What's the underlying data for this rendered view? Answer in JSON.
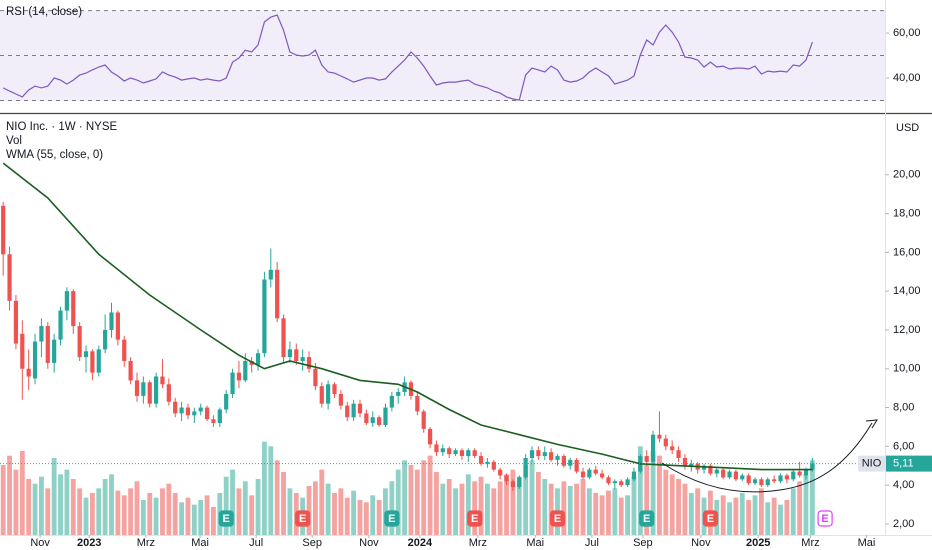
{
  "chart_data": {
    "type": "candlestick",
    "title": "NIO Inc. · 1W · NYSE",
    "currency": "USD",
    "x": [
      0,
      1,
      2,
      3,
      4,
      5,
      6,
      7,
      8,
      9,
      10,
      11,
      12,
      13,
      14,
      15,
      16,
      17,
      18,
      19,
      20,
      21,
      22,
      23,
      24,
      25,
      26,
      27,
      28,
      29,
      30,
      31,
      32,
      33,
      34,
      35,
      36,
      37,
      38,
      39,
      40,
      41,
      42,
      43,
      44,
      45,
      46,
      47,
      48,
      49,
      50,
      51,
      52,
      53,
      54,
      55,
      56,
      57,
      58,
      59,
      60,
      61,
      62,
      63,
      64,
      65,
      66,
      67,
      68,
      69,
      70,
      71,
      72,
      73,
      74,
      75,
      76,
      77,
      78,
      79,
      80,
      81,
      82,
      83,
      84,
      85,
      86,
      87,
      88,
      89,
      90,
      91,
      92,
      93,
      94,
      95,
      96,
      97,
      98,
      99,
      100,
      101,
      102,
      103,
      104,
      105,
      106,
      107,
      108,
      109,
      110,
      111,
      112,
      113,
      114,
      115,
      116,
      117,
      118,
      119,
      120,
      121,
      122,
      123,
      124,
      125,
      126,
      127
    ],
    "open": [
      18.4,
      15.9,
      13.5,
      11.8,
      10.0,
      9.5,
      11.4,
      12.2,
      10.3,
      11.5,
      13.0,
      14.0,
      12.2,
      10.6,
      10.9,
      9.8,
      11.0,
      12.0,
      12.9,
      11.5,
      10.4,
      9.4,
      8.6,
      9.3,
      8.2,
      9.6,
      9.2,
      8.3,
      7.7,
      8.0,
      7.6,
      7.8,
      8.0,
      7.4,
      7.2,
      7.9,
      8.7,
      9.8,
      9.4,
      10.4,
      10.2,
      10.8,
      14.6,
      15.1,
      12.6,
      10.6,
      11.0,
      10.4,
      10.6,
      10.0,
      9.1,
      8.2,
      9.2,
      8.7,
      8.1,
      7.5,
      8.2,
      7.7,
      7.2,
      7.5,
      7.1,
      8.0,
      8.6,
      8.8,
      9.3,
      8.6,
      7.8,
      6.9,
      6.1,
      5.7,
      5.9,
      5.6,
      5.8,
      5.5,
      5.8,
      5.5,
      5.1,
      5.2,
      4.8,
      4.5,
      4.2,
      3.9,
      4.4,
      5.4,
      5.8,
      5.5,
      5.7,
      5.3,
      5.5,
      5.0,
      5.3,
      4.7,
      4.4,
      4.8,
      4.6,
      4.4,
      4.1,
      4.2,
      4.0,
      4.3,
      4.7,
      5.5,
      5.2,
      6.6,
      6.4,
      6.0,
      5.8,
      5.4,
      5.0,
      5.1,
      4.8,
      5.0,
      4.6,
      4.8,
      4.4,
      4.7,
      4.3,
      4.5,
      4.1,
      4.3,
      4.0,
      4.3,
      4.2,
      4.5,
      4.3,
      4.7,
      4.5,
      4.8
    ],
    "high": [
      18.6,
      16.3,
      13.8,
      12.5,
      11.0,
      11.8,
      12.6,
      12.4,
      11.8,
      13.2,
      14.2,
      14.1,
      12.4,
      11.2,
      11.0,
      11.2,
      12.8,
      13.4,
      13.0,
      11.7,
      10.6,
      9.8,
      9.6,
      9.4,
      9.8,
      10.5,
      9.5,
      8.5,
      8.3,
      8.2,
      8.0,
      8.2,
      8.1,
      7.6,
      8.0,
      8.9,
      10.0,
      10.4,
      10.8,
      10.6,
      11.0,
      15.0,
      16.2,
      15.5,
      12.8,
      11.4,
      11.3,
      11.0,
      10.9,
      10.3,
      9.3,
      9.4,
      9.3,
      8.9,
      8.3,
      8.4,
      8.4,
      7.9,
      7.8,
      7.6,
      8.2,
      8.8,
      9.0,
      9.6,
      9.4,
      8.8,
      7.9,
      7.0,
      6.3,
      6.1,
      6.0,
      5.9,
      5.9,
      5.9,
      5.9,
      5.7,
      5.4,
      5.3,
      4.9,
      4.6,
      4.3,
      4.5,
      5.6,
      6.0,
      6.0,
      6.0,
      5.9,
      5.6,
      5.6,
      5.4,
      5.4,
      4.9,
      4.9,
      5.0,
      4.8,
      4.5,
      4.3,
      4.3,
      4.4,
      4.9,
      5.6,
      5.8,
      6.8,
      7.8,
      6.6,
      6.3,
      6.0,
      5.6,
      5.3,
      5.2,
      5.1,
      5.1,
      4.9,
      4.9,
      4.8,
      4.8,
      4.6,
      4.6,
      4.4,
      4.4,
      4.4,
      4.5,
      4.6,
      4.6,
      4.8,
      5.2,
      4.9,
      5.4
    ],
    "low": [
      14.8,
      13.0,
      11.0,
      8.4,
      8.9,
      9.2,
      10.6,
      10.0,
      9.8,
      11.2,
      12.5,
      11.8,
      10.4,
      9.8,
      9.4,
      9.6,
      10.8,
      11.6,
      11.2,
      10.1,
      9.2,
      8.3,
      8.2,
      8.0,
      8.0,
      9.0,
      8.1,
      7.5,
      7.3,
      7.4,
      7.2,
      7.6,
      7.3,
      7.0,
      7.0,
      7.7,
      8.5,
      9.0,
      9.3,
      9.8,
      9.9,
      10.6,
      14.2,
      12.4,
      10.3,
      10.3,
      10.2,
      9.9,
      9.8,
      8.9,
      8.0,
      7.9,
      8.5,
      7.9,
      7.3,
      7.3,
      7.5,
      7.1,
      7.0,
      7.0,
      7.0,
      7.8,
      8.2,
      8.6,
      8.4,
      7.6,
      6.7,
      5.9,
      5.5,
      5.5,
      5.4,
      5.5,
      5.3,
      5.2,
      5.4,
      5.0,
      4.9,
      4.7,
      4.3,
      4.0,
      3.7,
      3.8,
      4.3,
      5.2,
      5.3,
      5.3,
      5.2,
      5.0,
      4.9,
      4.8,
      4.6,
      4.3,
      4.3,
      4.5,
      4.3,
      4.0,
      3.8,
      3.9,
      3.9,
      4.2,
      4.6,
      5.0,
      5.1,
      6.2,
      5.8,
      5.6,
      5.2,
      4.8,
      4.7,
      4.6,
      4.6,
      4.5,
      4.4,
      4.3,
      4.3,
      4.2,
      4.2,
      4.0,
      4.0,
      3.9,
      3.9,
      4.1,
      4.1,
      4.1,
      4.2,
      4.4,
      4.3,
      4.7
    ],
    "close": [
      15.9,
      13.5,
      11.3,
      10.0,
      9.6,
      11.4,
      12.2,
      10.3,
      11.5,
      13.0,
      14.0,
      12.2,
      10.6,
      10.9,
      9.8,
      11.0,
      12.0,
      12.9,
      11.5,
      10.4,
      9.4,
      8.6,
      9.3,
      8.2,
      9.6,
      9.2,
      8.3,
      7.7,
      8.0,
      7.6,
      7.8,
      8.0,
      7.4,
      7.2,
      7.9,
      8.7,
      9.8,
      9.4,
      10.4,
      10.2,
      10.8,
      14.6,
      15.1,
      12.6,
      10.6,
      11.0,
      10.4,
      10.6,
      10.0,
      9.1,
      8.2,
      9.2,
      8.7,
      8.1,
      7.5,
      8.2,
      7.7,
      7.2,
      7.5,
      7.1,
      8.0,
      8.6,
      8.8,
      9.3,
      8.6,
      7.8,
      6.9,
      6.1,
      5.7,
      5.9,
      5.6,
      5.8,
      5.5,
      5.8,
      5.5,
      5.1,
      5.2,
      4.8,
      4.5,
      4.2,
      3.9,
      4.4,
      5.4,
      5.8,
      5.5,
      5.7,
      5.3,
      5.5,
      5.0,
      5.3,
      4.7,
      4.4,
      4.8,
      4.6,
      4.4,
      4.1,
      4.2,
      4.0,
      4.3,
      4.7,
      5.5,
      5.2,
      6.6,
      6.4,
      6.0,
      5.8,
      5.4,
      5.0,
      5.1,
      4.8,
      5.0,
      4.6,
      4.8,
      4.4,
      4.7,
      4.3,
      4.5,
      4.1,
      4.3,
      4.0,
      4.3,
      4.2,
      4.5,
      4.3,
      4.7,
      4.5,
      4.8,
      5.11
    ],
    "up_color": "#26a69a",
    "down_color": "#ef5350",
    "volume": {
      "name": "Vol",
      "ylim": [
        0,
        1800
      ],
      "up_color": "#8fd1c6",
      "down_color": "#f5a3a1",
      "values": [
        300,
        340,
        280,
        360,
        240,
        220,
        250,
        200,
        330,
        260,
        280,
        240,
        200,
        160,
        180,
        200,
        240,
        260,
        190,
        170,
        200,
        230,
        150,
        180,
        160,
        200,
        220,
        180,
        140,
        160,
        130,
        150,
        170,
        120,
        180,
        250,
        280,
        200,
        230,
        170,
        240,
        400,
        380,
        320,
        270,
        200,
        180,
        160,
        210,
        230,
        280,
        220,
        180,
        200,
        160,
        190,
        150,
        140,
        170,
        150,
        200,
        230,
        280,
        320,
        300,
        280,
        320,
        340,
        270,
        220,
        240,
        200,
        220,
        260,
        230,
        250,
        220,
        200,
        230,
        260,
        280,
        250,
        300,
        320,
        270,
        240,
        220,
        200,
        230,
        210,
        220,
        240,
        200,
        180,
        170,
        190,
        200,
        160,
        170,
        250,
        380,
        300,
        360,
        340,
        280,
        260,
        240,
        220,
        180,
        200,
        160,
        190,
        150,
        170,
        140,
        160,
        180,
        150,
        170,
        200,
        140,
        160,
        130,
        150,
        200,
        230,
        260,
        320
      ]
    },
    "overlay": {
      "name": "WMA (55, close, 0)",
      "color": "#1b5e20",
      "x": [
        0,
        7,
        15,
        23,
        31,
        37,
        41,
        45,
        50,
        56,
        62,
        65,
        70,
        75,
        81,
        87,
        94,
        100,
        106,
        113,
        119,
        127
      ],
      "values": [
        20.6,
        18.8,
        15.9,
        13.8,
        12.0,
        10.7,
        10.0,
        10.4,
        10.0,
        9.4,
        9.2,
        8.8,
        7.9,
        7.1,
        6.6,
        6.1,
        5.6,
        5.1,
        5.0,
        4.9,
        4.8,
        4.8
      ]
    },
    "last_price": {
      "symbol": "NIO",
      "value": 5.11,
      "label": "5,11"
    },
    "events": [
      {
        "x": 35,
        "label": "E",
        "color": "#26a69a",
        "style": "filled"
      },
      {
        "x": 47,
        "label": "E",
        "color": "#ef5350",
        "style": "filled"
      },
      {
        "x": 61,
        "label": "E",
        "color": "#26a69a",
        "style": "filled"
      },
      {
        "x": 74,
        "label": "E",
        "color": "#ef5350",
        "style": "filled"
      },
      {
        "x": 87,
        "label": "E",
        "color": "#ef5350",
        "style": "filled"
      },
      {
        "x": 101,
        "label": "E",
        "color": "#26a69a",
        "style": "filled"
      },
      {
        "x": 111,
        "label": "E",
        "color": "#ef5350",
        "style": "filled"
      },
      {
        "x": 129,
        "label": "E",
        "color": "#e040fb",
        "style": "outline"
      }
    ],
    "xlim": [
      -0.5,
      138.4
    ],
    "xticks": [
      {
        "value": 5.8,
        "label": "Nov"
      },
      {
        "value": 13.5,
        "label": "2023"
      },
      {
        "value": 22.4,
        "label": "Mrz"
      },
      {
        "value": 30.9,
        "label": "Mai"
      },
      {
        "value": 39.7,
        "label": "Jul"
      },
      {
        "value": 48.5,
        "label": "Sep"
      },
      {
        "value": 57.4,
        "label": "Nov"
      },
      {
        "value": 65.4,
        "label": "2024"
      },
      {
        "value": 74.5,
        "label": "Mrz"
      },
      {
        "value": 83.5,
        "label": "Mai"
      },
      {
        "value": 92.4,
        "label": "Jul"
      },
      {
        "value": 100.4,
        "label": "Sep"
      },
      {
        "value": 109.5,
        "label": "Nov"
      },
      {
        "value": 118.5,
        "label": "2025"
      },
      {
        "value": 126.7,
        "label": "Mrz"
      },
      {
        "value": 135.5,
        "label": "Mai"
      }
    ],
    "ylim": [
      1.43,
      23.08
    ],
    "yticks": [
      {
        "value": 2,
        "label": "2,00"
      },
      {
        "value": 4,
        "label": "4,00"
      },
      {
        "value": 6,
        "label": "6,00"
      },
      {
        "value": 8,
        "label": "8,00"
      },
      {
        "value": 10,
        "label": "10,00"
      },
      {
        "value": 12,
        "label": "12,00"
      },
      {
        "value": 14,
        "label": "14,00"
      },
      {
        "value": 16,
        "label": "16,00"
      },
      {
        "value": 18,
        "label": "18,00"
      },
      {
        "value": 20,
        "label": "20,00"
      }
    ],
    "rsi": {
      "title": "RSI (14, close)",
      "color": "#7e57c2",
      "values": [
        35.6,
        34.2,
        32.9,
        31.6,
        34.7,
        36.4,
        35.6,
        36.4,
        40,
        39.1,
        37.3,
        39.1,
        41.3,
        42.2,
        43.6,
        44.9,
        45.8,
        42.7,
        40.9,
        38.7,
        40,
        39.1,
        37.8,
        38.7,
        39.6,
        42.7,
        41.3,
        40.4,
        39.1,
        39.6,
        40,
        39.1,
        39.6,
        39.1,
        38.7,
        40,
        47.1,
        48.9,
        52.4,
        51.6,
        54.7,
        64.9,
        67.1,
        68,
        61.3,
        51.6,
        50.2,
        49.8,
        50.2,
        52.4,
        45.8,
        42.7,
        42.2,
        40.9,
        39.6,
        38.2,
        39.1,
        40,
        40,
        39.1,
        39.6,
        42.7,
        45.3,
        48,
        51.6,
        48.9,
        45.3,
        40.9,
        36.9,
        37.8,
        38.2,
        38.2,
        38.7,
        39.1,
        37.3,
        36.4,
        35.6,
        34.2,
        33.3,
        31.6,
        30.7,
        30.2,
        41.3,
        44.4,
        43.6,
        42.7,
        45.3,
        43.6,
        39.1,
        38.2,
        38.7,
        40,
        42.7,
        44.4,
        42.7,
        40.9,
        37.3,
        38.2,
        39.1,
        40.9,
        50.2,
        56.9,
        54.7,
        60.4,
        63.6,
        60.4,
        56,
        49.3,
        48.9,
        48,
        44.9,
        47.1,
        44.9,
        45.3,
        44,
        44.4,
        44.4,
        44,
        45.3,
        41.8,
        43.1,
        42.7,
        43.1,
        42.7,
        45.8,
        45.3,
        48,
        56
      ],
      "ylim": [
        24.9,
        74.7
      ],
      "yticks": [
        {
          "value": 40,
          "label": "40,00"
        },
        {
          "value": 60,
          "label": "60,00"
        }
      ],
      "levels": [
        30,
        50,
        70
      ]
    }
  }
}
